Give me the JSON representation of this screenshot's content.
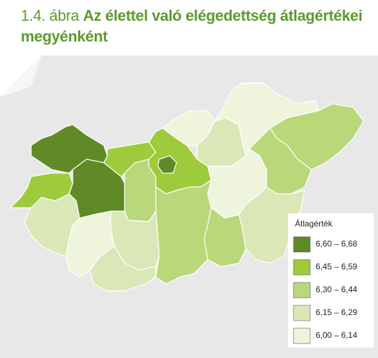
{
  "header": {
    "figure_label": "1.4. ábra",
    "title": "Az élettel való elégedettség átlagértékei megyénként"
  },
  "legend": {
    "title": "Átlagérték",
    "classes": [
      {
        "label": "6,60 – 6,68",
        "color": "#5f8a26"
      },
      {
        "label": "6,45 – 6,59",
        "color": "#9ecb3c"
      },
      {
        "label": "6,30 – 6,44",
        "color": "#b9d879"
      },
      {
        "label": "6,15 – 6,29",
        "color": "#d9e8b6"
      },
      {
        "label": "6,00 – 6,14",
        "color": "#eff5dd"
      }
    ]
  },
  "regions": [
    {
      "class": 0
    },
    {
      "class": 1
    },
    {
      "class": 0
    },
    {
      "class": 1
    },
    {
      "class": 2
    },
    {
      "class": 1
    },
    {
      "class": 4
    },
    {
      "class": 3
    },
    {
      "class": 4
    },
    {
      "class": 2
    },
    {
      "class": 2
    },
    {
      "class": 4
    },
    {
      "class": 3
    },
    {
      "class": 2
    },
    {
      "class": 2
    },
    {
      "class": 3
    },
    {
      "class": 3
    },
    {
      "class": 4
    },
    {
      "class": 3
    },
    {
      "class": 0
    }
  ]
}
